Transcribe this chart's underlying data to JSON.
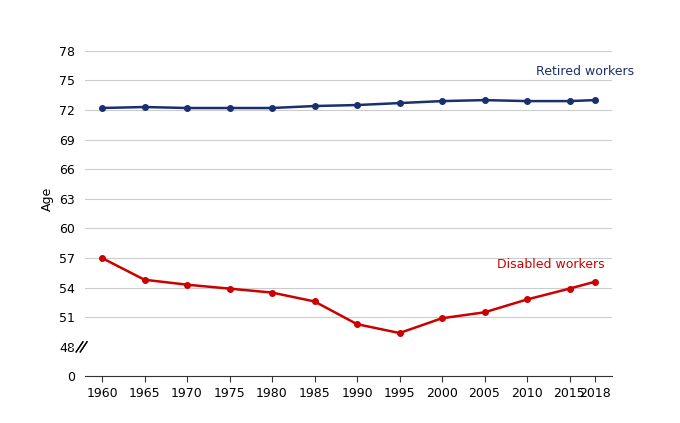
{
  "years": [
    1960,
    1965,
    1970,
    1975,
    1980,
    1985,
    1990,
    1995,
    2000,
    2005,
    2010,
    2015,
    2018
  ],
  "retired_workers": [
    72.2,
    72.3,
    72.2,
    72.2,
    72.2,
    72.4,
    72.5,
    72.7,
    72.9,
    73.0,
    72.9,
    72.9,
    73.0
  ],
  "disabled_workers": [
    57.0,
    54.8,
    54.3,
    53.9,
    53.5,
    52.6,
    50.3,
    49.4,
    50.9,
    51.5,
    52.8,
    53.9,
    54.6
  ],
  "retired_color": "#1a2f6e",
  "disabled_color": "#cc0000",
  "retired_label": "Retired workers",
  "disabled_label": "Disabled workers",
  "ylabel": "Age",
  "background_color": "#ffffff",
  "grid_color": "#cccccc",
  "marker": "o",
  "marker_size": 4,
  "line_width": 1.8
}
